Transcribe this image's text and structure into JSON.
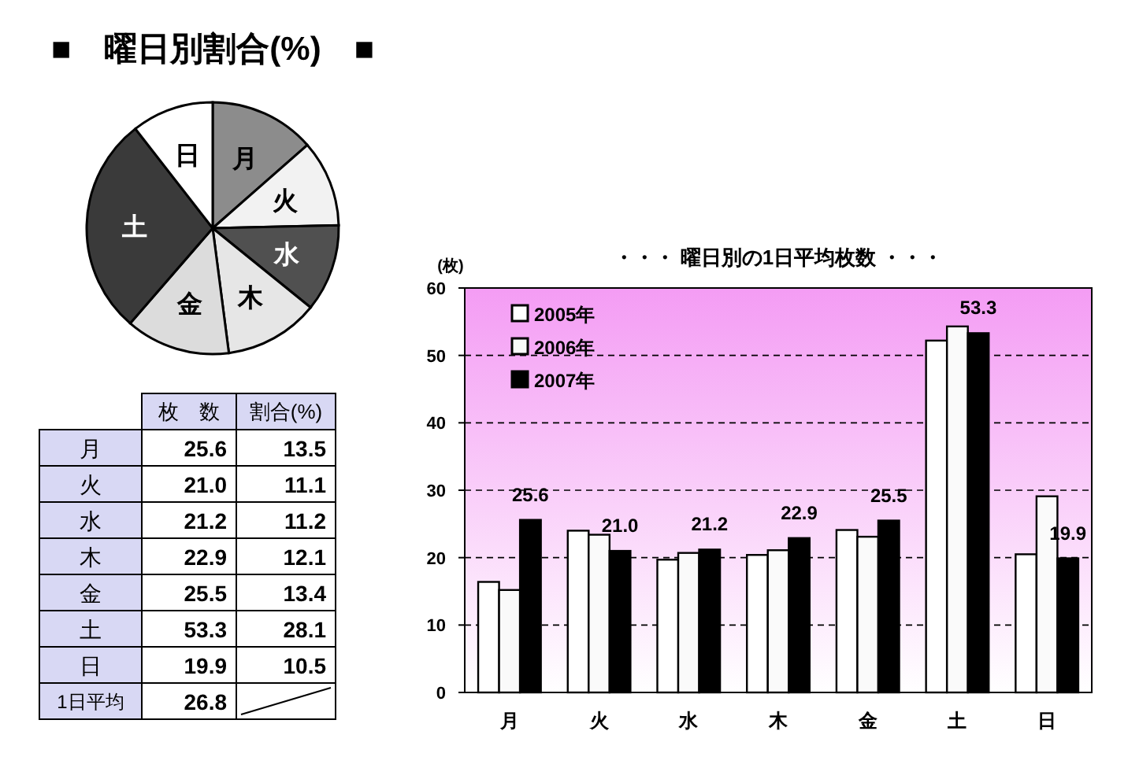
{
  "chart_data": [
    {
      "type": "pie",
      "title": "■　曜日別割合(%)　■",
      "categories": [
        "月",
        "火",
        "水",
        "木",
        "金",
        "土",
        "日"
      ],
      "values": [
        13.5,
        11.1,
        11.2,
        12.1,
        13.4,
        28.1,
        10.5
      ],
      "colors": [
        "#8c8c8c",
        "#f2f2f2",
        "#505050",
        "#e6e6e6",
        "#dcdcdc",
        "#3a3a3a",
        "#ffffff"
      ],
      "legend": "bottom left",
      "annotations": [
        "枚　数",
        "割合(%)",
        "25.6",
        "13.5",
        "21.0",
        "11.1",
        "21.2",
        "11.2",
        "22.9",
        "12.1",
        "25.5",
        "13.4",
        "53.3",
        "28.1",
        "19.9",
        "10.5",
        "1日平均",
        "26.8"
      ]
    },
    {
      "type": "bar",
      "title": "・・・ 曜日別の1日平均枚数 ・・・",
      "ylabel": "(枚)",
      "categories": [
        "月",
        "火",
        "水",
        "木",
        "金",
        "土",
        "日"
      ],
      "series": [
        {
          "name": "2005年",
          "color": "#ffffff",
          "values": [
            16.4,
            24.0,
            19.7,
            20.4,
            24.1,
            52.2,
            20.5
          ]
        },
        {
          "name": "2006年",
          "color": "#fafafa",
          "values": [
            15.2,
            23.4,
            20.7,
            21.1,
            23.1,
            54.3,
            29.1
          ]
        },
        {
          "name": "2007年",
          "color": "#000000",
          "values": [
            25.6,
            21.0,
            21.2,
            22.9,
            25.5,
            53.3,
            19.9
          ],
          "value_labels": [
            "25.6",
            "21.0",
            "21.2",
            "22.9",
            "25.5",
            "53.3",
            "19.9"
          ]
        }
      ],
      "ylim": [
        0,
        60
      ],
      "yticks": [
        0,
        10,
        20,
        30,
        40,
        50,
        60
      ],
      "grid": "y",
      "legend": "top left"
    }
  ]
}
